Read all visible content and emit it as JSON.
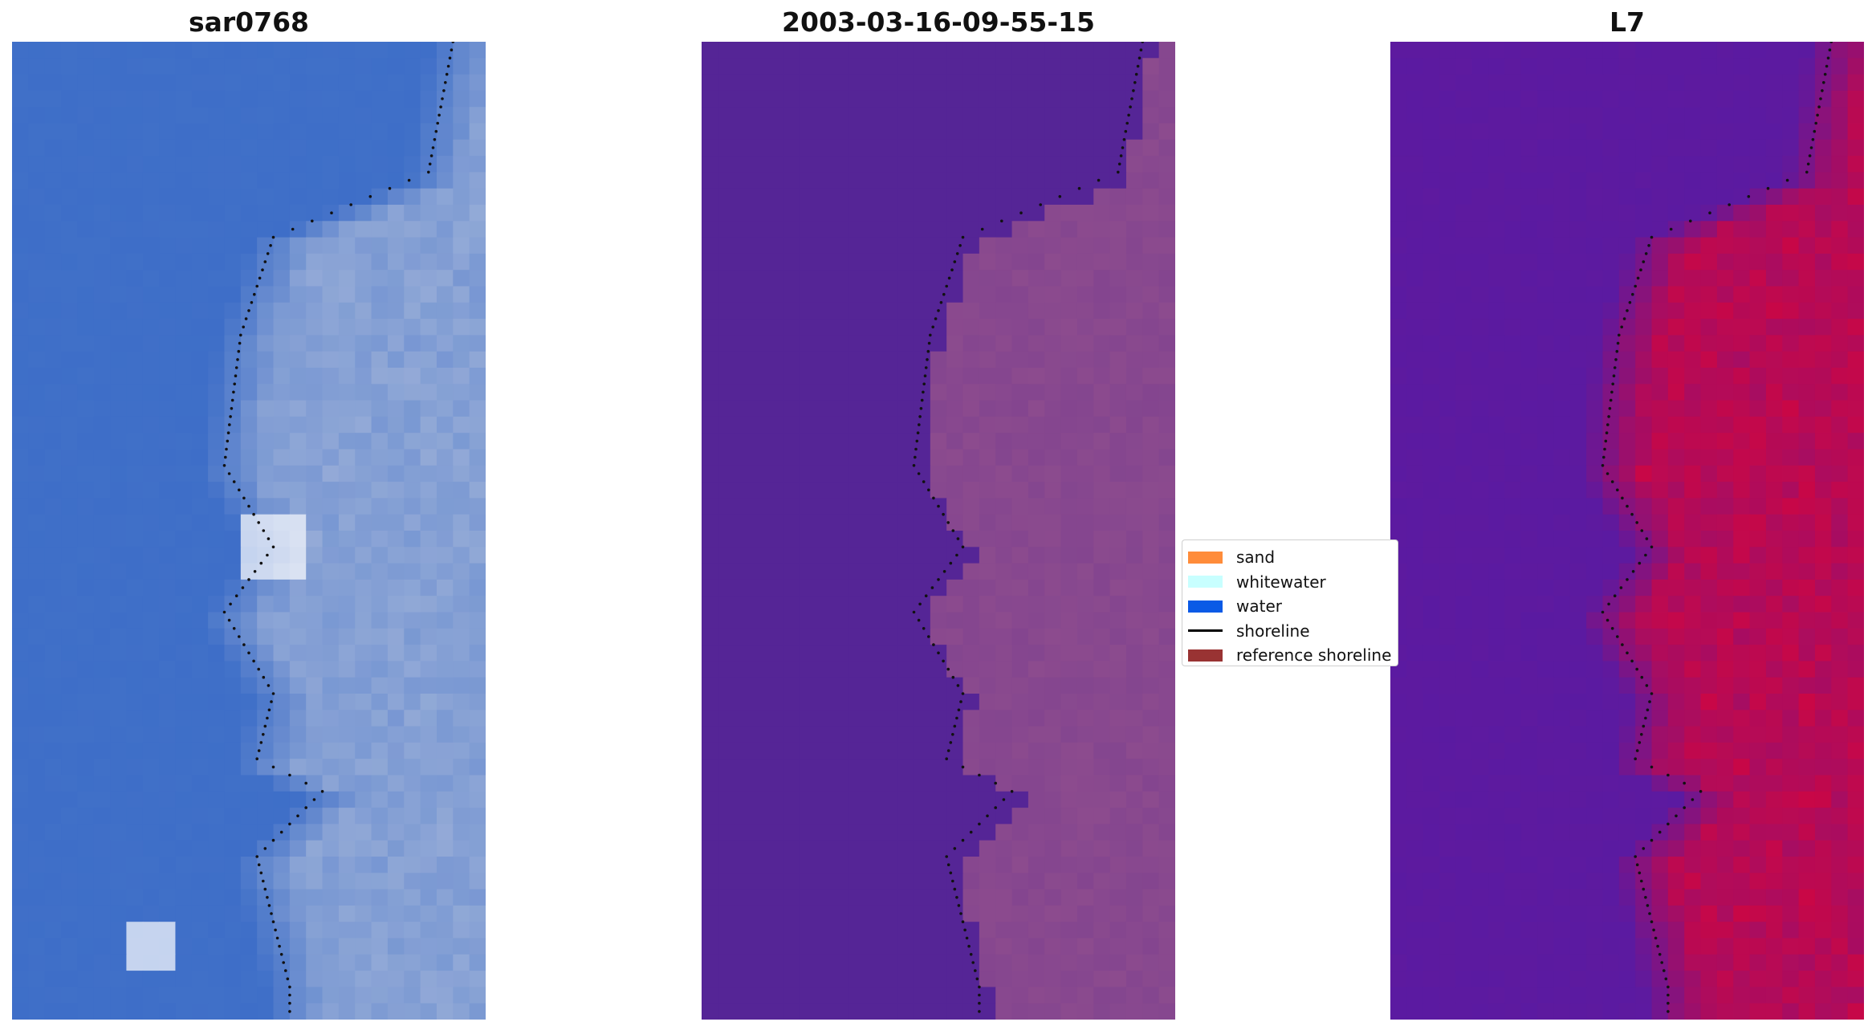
{
  "panels": [
    {
      "title": "sar0768",
      "palette": "rgb"
    },
    {
      "title": "2003-03-16-09-55-15",
      "palette": "classified"
    },
    {
      "title": "L7",
      "palette": "index"
    }
  ],
  "legend": {
    "items": [
      {
        "label": "sand",
        "kind": "patch",
        "color": "#ff8c3a"
      },
      {
        "label": "whitewater",
        "kind": "patch",
        "color": "#c8ffff"
      },
      {
        "label": "water",
        "kind": "patch",
        "color": "#0a5ae6"
      },
      {
        "label": "shoreline",
        "kind": "line",
        "color": "#000000"
      },
      {
        "label": "reference shoreline",
        "kind": "patch",
        "color": "#993333"
      }
    ]
  },
  "colors": {
    "rgb_water": "#3f6fc8",
    "rgb_land": "#8fa7d6",
    "rgb_white": "#ffffff",
    "class_water": "#552596",
    "class_land": "#8c4b8e",
    "index_water": "#5c1aa0",
    "index_land": "#c4084a",
    "shoreline_points": "#111111"
  }
}
